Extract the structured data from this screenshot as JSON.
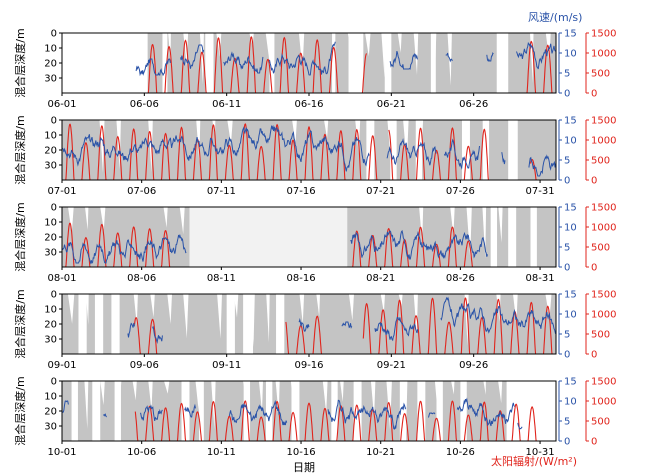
{
  "colors": {
    "mld_fill": "#c4c4c4",
    "mld_fill_alt": "#f2f2f2",
    "wind": "#2a53a8",
    "radiation": "#e0241c",
    "axis": "#000000"
  },
  "labels": {
    "wind_axis": "风速/(m/s)",
    "radiation_axis": "太阳辐射/(W/m²)",
    "mld_axis": "混合层深度/m",
    "x_axis": "日期"
  },
  "chart_data": [
    {
      "type": "area",
      "month": "06",
      "ndays": 30,
      "xticks": [
        "06-01",
        "06-06",
        "06-11",
        "06-16",
        "06-21",
        "06-26"
      ],
      "xtick_days": [
        1,
        6,
        11,
        16,
        21,
        26
      ],
      "ylim_mld": [
        0,
        40
      ],
      "mld_ticks": [
        0,
        10,
        20,
        30
      ],
      "ylim_wind": [
        0,
        15
      ],
      "wind_ticks": [
        0,
        5,
        10,
        15
      ],
      "ylim_rad": [
        0,
        1500
      ],
      "rad_ticks": [
        0,
        500,
        1000,
        1500
      ],
      "mld_segments": [
        [
          6.2,
          31.0,
          8,
          38
        ]
      ],
      "mld_gaps": [
        [
          7.1,
          7.4
        ],
        [
          9.7,
          10.2
        ],
        [
          13.6,
          13.9
        ],
        [
          17.4,
          17.6
        ],
        [
          18.4,
          19.3
        ],
        [
          20.6,
          21.0
        ],
        [
          23.4,
          23.7
        ],
        [
          27.4,
          28.1
        ]
      ],
      "wind_segments": [
        [
          5.5,
          7.6,
          4.5,
          8.5
        ],
        [
          8.2,
          9.6,
          6,
          12
        ],
        [
          10.8,
          13.2,
          5,
          11
        ],
        [
          13.6,
          17.6,
          4,
          13
        ],
        [
          20.9,
          22.6,
          6,
          11
        ],
        [
          24.3,
          24.7,
          8,
          10
        ],
        [
          26.8,
          27.2,
          8,
          11
        ],
        [
          28.6,
          31.0,
          6,
          13
        ]
      ],
      "rad_segments": [
        [
          6.0,
          17.8,
          1400
        ],
        [
          19.0,
          19.5,
          1100
        ],
        [
          20.8,
          20.7,
          0
        ],
        [
          28.8,
          31.0,
          1400
        ]
      ]
    },
    {
      "type": "area",
      "month": "07",
      "ndays": 31,
      "xticks": [
        "07-01",
        "07-06",
        "07-11",
        "07-16",
        "07-21",
        "07-26",
        "07-31"
      ],
      "xtick_days": [
        1,
        6,
        11,
        16,
        21,
        26,
        31
      ],
      "ylim_mld": [
        0,
        40
      ],
      "mld_ticks": [
        0,
        10,
        20,
        30
      ],
      "ylim_wind": [
        0,
        15
      ],
      "wind_ticks": [
        0,
        5,
        10,
        15
      ],
      "ylim_rad": [
        0,
        1500
      ],
      "rad_ticks": [
        0,
        500,
        1000,
        1500
      ],
      "mld_segments": [
        [
          1.0,
          32.0,
          6,
          38
        ]
      ],
      "mld_gaps": [
        [
          20.1,
          20.6
        ],
        [
          21.6,
          22.0
        ],
        [
          23.2,
          23.6
        ],
        [
          26.1,
          26.6
        ],
        [
          27.4,
          27.8
        ],
        [
          29.0,
          29.6
        ]
      ],
      "wind_segments": [
        [
          1.0,
          20.3,
          2,
          15
        ],
        [
          21.4,
          24.5,
          2,
          10
        ],
        [
          25.0,
          27.2,
          3,
          10
        ],
        [
          28.6,
          28.8,
          4,
          9
        ],
        [
          30.3,
          32.0,
          1,
          6
        ]
      ],
      "rad_segments": [
        [
          1.0,
          20.8,
          1400
        ],
        [
          21.5,
          27.8,
          1300
        ],
        [
          30.4,
          31.0,
          600
        ]
      ]
    },
    {
      "type": "area",
      "month": "08",
      "ndays": 31,
      "xticks": [
        "08-01",
        "08-06",
        "08-11",
        "08-16",
        "08-21",
        "08-26",
        "08-31"
      ],
      "xtick_days": [
        1,
        6,
        11,
        16,
        21,
        26,
        31
      ],
      "ylim_mld": [
        0,
        40
      ],
      "mld_ticks": [
        0,
        10,
        20,
        30
      ],
      "ylim_wind": [
        0,
        15
      ],
      "wind_ticks": [
        0,
        5,
        10,
        15
      ],
      "ylim_rad": [
        0,
        1500
      ],
      "rad_ticks": [
        0,
        500,
        1000,
        1500
      ],
      "mld_segments": [
        [
          1.0,
          9.0,
          18,
          38
        ],
        [
          18.9,
          32.0,
          10,
          38
        ]
      ],
      "mld_gaps": [
        [
          27.9,
          28.3
        ],
        [
          29.0,
          29.5
        ],
        [
          30.4,
          30.8
        ]
      ],
      "mld_light": [
        [
          9.0,
          18.9,
          3,
          38
        ]
      ],
      "wind_segments": [
        [
          1.0,
          8.8,
          1,
          8
        ],
        [
          19.1,
          27.7,
          2,
          9
        ]
      ],
      "rad_segments": [
        [
          1.0,
          7.8,
          1100
        ],
        [
          19.1,
          27.2,
          1000
        ]
      ]
    },
    {
      "type": "area",
      "month": "09",
      "ndays": 30,
      "xticks": [
        "09-01",
        "09-06",
        "09-11",
        "09-16",
        "09-21",
        "09-26"
      ],
      "xtick_days": [
        1,
        6,
        11,
        16,
        21,
        26
      ],
      "ylim_mld": [
        0,
        40
      ],
      "mld_ticks": [
        0,
        10,
        20,
        30
      ],
      "ylim_wind": [
        0,
        15
      ],
      "wind_ticks": [
        0,
        5,
        10,
        15
      ],
      "ylim_rad": [
        0,
        1500
      ],
      "rad_ticks": [
        0,
        500,
        1000,
        1500
      ],
      "mld_segments": [
        [
          1.0,
          31.0,
          4,
          38
        ]
      ],
      "mld_gaps": [
        [
          2.0,
          2.5
        ],
        [
          3.0,
          3.5
        ],
        [
          4.0,
          4.5
        ],
        [
          11.0,
          11.5
        ],
        [
          12.0,
          12.6
        ],
        [
          14.0,
          14.5
        ]
      ],
      "wind_segments": [
        [
          5.0,
          5.4,
          3,
          8
        ],
        [
          6.5,
          7.1,
          3,
          8
        ],
        [
          15.4,
          16.0,
          4,
          10
        ],
        [
          18.0,
          18.6,
          4,
          8
        ],
        [
          20.0,
          22.6,
          3,
          10
        ],
        [
          24.0,
          31.0,
          2,
          14
        ]
      ],
      "rad_segments": [
        [
          5.4,
          7.0,
          1000
        ],
        [
          14.6,
          16.8,
          1000
        ],
        [
          19.3,
          31.0,
          1400
        ]
      ]
    },
    {
      "type": "area",
      "month": "10",
      "ndays": 31,
      "xticks": [
        "10-01",
        "10-06",
        "10-11",
        "10-16",
        "10-21",
        "10-26",
        "10-31"
      ],
      "xtick_days": [
        1,
        6,
        11,
        16,
        21,
        26,
        31
      ],
      "ylim_mld": [
        0,
        40
      ],
      "mld_ticks": [
        0,
        10,
        20,
        30
      ],
      "ylim_wind": [
        0,
        15
      ],
      "wind_ticks": [
        0,
        5,
        10,
        15
      ],
      "ylim_rad": [
        0,
        1500
      ],
      "rad_ticks": [
        0,
        500,
        1000,
        1500
      ],
      "mld_segments": [
        [
          1.0,
          28.9,
          4,
          38
        ]
      ],
      "mld_gaps": [
        [
          1.6,
          2.0
        ],
        [
          2.9,
          3.4
        ],
        [
          4.3,
          4.7
        ],
        [
          8.5,
          9.0
        ],
        [
          9.6,
          9.9
        ],
        [
          12.4,
          12.8
        ],
        [
          13.8,
          14.2
        ],
        [
          15.4,
          15.9
        ],
        [
          17.9,
          18.3
        ],
        [
          19.3,
          19.8
        ],
        [
          22.2,
          22.6
        ],
        [
          23.3,
          23.8
        ],
        [
          24.5,
          24.9
        ],
        [
          26.0,
          26.4
        ]
      ],
      "wind_segments": [
        [
          1.0,
          1.4,
          6,
          10
        ],
        [
          3.6,
          3.8,
          6,
          9
        ],
        [
          5.9,
          7.3,
          2,
          13
        ],
        [
          8.7,
          9.4,
          6,
          11
        ],
        [
          11.5,
          15.1,
          4,
          10
        ],
        [
          17.7,
          22.6,
          3,
          12
        ],
        [
          24.0,
          24.4,
          4,
          7
        ],
        [
          25.8,
          29.4,
          2,
          13
        ],
        [
          29.6,
          29.9,
          3,
          5
        ]
      ],
      "rad_segments": [
        [
          5.6,
          31.0,
          1000
        ]
      ]
    }
  ]
}
